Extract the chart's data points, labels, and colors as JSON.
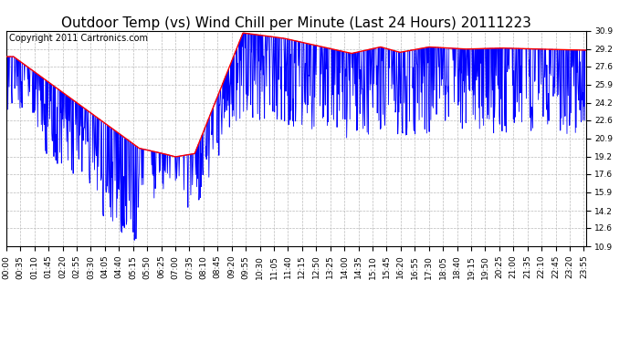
{
  "title": "Outdoor Temp (vs) Wind Chill per Minute (Last 24 Hours) 20111223",
  "copyright_text": "Copyright 2011 Cartronics.com",
  "ylim": [
    10.9,
    30.9
  ],
  "yticks": [
    10.9,
    12.6,
    14.2,
    15.9,
    17.6,
    19.2,
    20.9,
    22.6,
    24.2,
    25.9,
    27.6,
    29.2,
    30.9
  ],
  "background_color": "#ffffff",
  "plot_bg_color": "#ffffff",
  "grid_color": "#bbbbbb",
  "line_color_blue": "#0000ff",
  "line_color_red": "#ff0000",
  "title_fontsize": 11,
  "copyright_fontsize": 7,
  "tick_fontsize": 6.5,
  "xtick_labels": [
    "00:00",
    "00:35",
    "01:10",
    "01:45",
    "02:20",
    "02:55",
    "03:30",
    "04:05",
    "04:40",
    "05:15",
    "05:50",
    "06:25",
    "07:00",
    "07:35",
    "08:10",
    "08:45",
    "09:20",
    "09:55",
    "10:30",
    "11:05",
    "11:40",
    "12:15",
    "12:50",
    "13:25",
    "14:00",
    "14:35",
    "15:10",
    "15:45",
    "16:20",
    "16:55",
    "17:30",
    "18:05",
    "18:40",
    "19:15",
    "19:50",
    "20:25",
    "21:00",
    "21:35",
    "22:10",
    "22:45",
    "23:20",
    "23:55"
  ]
}
